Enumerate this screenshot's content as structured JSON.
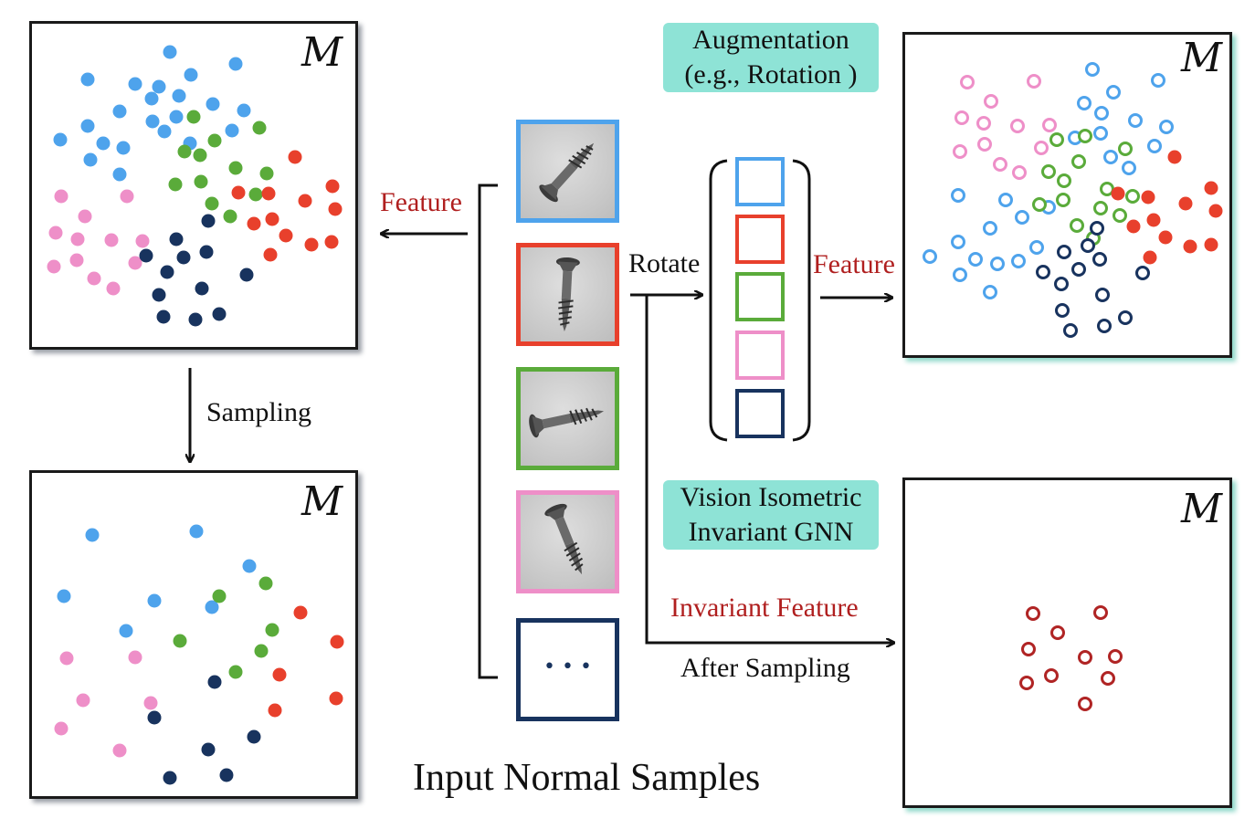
{
  "manifold_symbol": "M",
  "labels": {
    "feature_left": "Feature",
    "sampling": "Sampling",
    "rotate": "Rotate",
    "feature_right": "Feature",
    "invariant_feature": "Invariant Feature",
    "after_sampling": "After Sampling",
    "input_normal_samples": "Input Normal Samples",
    "augmentation_line1": "Augmentation",
    "augmentation_line2": "(e.g., Rotation )",
    "gnn_line1": "Vision Isometric",
    "gnn_line2": "Invariant GNN",
    "ellipsis": "•  •  •"
  },
  "colors": {
    "blue": "#4ea3ec",
    "red": "#e8402c",
    "green": "#5aab3a",
    "pink": "#ee8fc8",
    "navy": "#18335e",
    "darkred": "#b02424",
    "teal_box": "#8ee3d6",
    "panel_border": "#1a1a1a"
  },
  "sample_frames": [
    {
      "color_key": "blue",
      "screw": "screw-diagonal"
    },
    {
      "color_key": "red",
      "screw": "screw-vertical"
    },
    {
      "color_key": "green",
      "screw": "screw-horizontal"
    },
    {
      "color_key": "pink",
      "screw": "screw-tilted"
    },
    {
      "color_key": "navy",
      "screw": "ellipsis"
    }
  ],
  "rotation_slots": [
    "blue",
    "red",
    "green",
    "pink",
    "navy"
  ],
  "scatter_panels": {
    "top_left_feature_space": {
      "marker": "filled",
      "groups": [
        "blue",
        "green",
        "red",
        "pink",
        "navy"
      ]
    },
    "bottom_left_after_sampling": {
      "marker": "filled",
      "groups": [
        "blue",
        "green",
        "red",
        "pink",
        "navy"
      ]
    },
    "top_right_augmented_features": {
      "marker": "open_and_filled",
      "groups": [
        "pink",
        "blue",
        "green",
        "red",
        "navy"
      ]
    },
    "bottom_right_invariant_features": {
      "marker": "open",
      "groups": [
        "darkred"
      ]
    }
  }
}
